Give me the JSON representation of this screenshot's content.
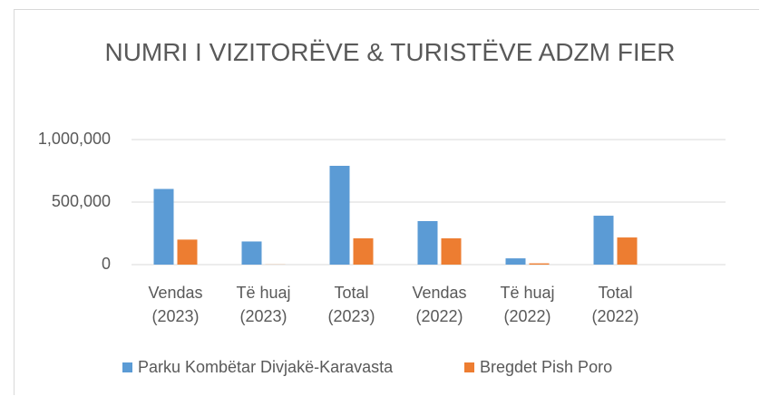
{
  "chart_data": {
    "type": "bar",
    "title": "NUMRI I VIZITORËVE & TURISTËVE ADZM FIER",
    "categories": [
      "Vendas (2023)",
      "Të huaj (2023)",
      "Total (2023)",
      "Vendas (2022)",
      "Të huaj (2022)",
      "Total (2022)"
    ],
    "series": [
      {
        "name": "Parku Kombëtar Divjakë-Karavasta",
        "color": "#5b9bd5",
        "values": [
          605000,
          185000,
          790000,
          348000,
          50000,
          391000
        ]
      },
      {
        "name": "Bregdet Pish Poro",
        "color": "#ed7d31",
        "values": [
          200000,
          1000,
          210000,
          210000,
          10000,
          217000
        ]
      }
    ],
    "ylim": [
      0,
      1000000
    ],
    "yticks": [
      0,
      {
        "value": 500000,
        "label": "500,000"
      },
      {
        "value": 1000000,
        "label": "1,000,000"
      }
    ],
    "grid": true,
    "legend": "bottom"
  }
}
